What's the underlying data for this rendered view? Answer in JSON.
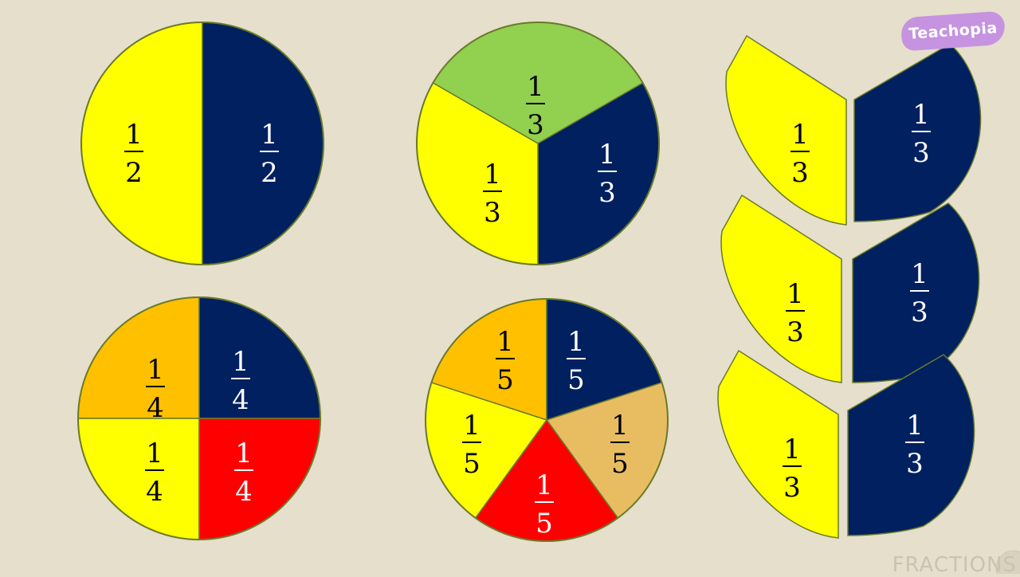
{
  "brand": {
    "name": "Teachopia",
    "color": "#c693e0"
  },
  "footer": {
    "label": "FRACTIONS"
  },
  "colors": {
    "yellow": "#ffff00",
    "navy": "#002060",
    "green": "#92d050",
    "orange": "#ffc000",
    "red": "#ff0000",
    "tan": "#e8bd62",
    "outline": "#6b7a2a"
  },
  "diagrams": [
    {
      "name": "halves-circle",
      "denominator": "2",
      "parts": [
        {
          "numerator": "1",
          "denominator": "2",
          "color": "yellow",
          "text_color": "#000000"
        },
        {
          "numerator": "1",
          "denominator": "2",
          "color": "navy",
          "text_color": "#ffffff"
        }
      ]
    },
    {
      "name": "thirds-circle",
      "denominator": "3",
      "parts": [
        {
          "numerator": "1",
          "denominator": "3",
          "color": "green",
          "text_color": "#000000"
        },
        {
          "numerator": "1",
          "denominator": "3",
          "color": "navy",
          "text_color": "#ffffff"
        },
        {
          "numerator": "1",
          "denominator": "3",
          "color": "yellow",
          "text_color": "#000000"
        }
      ]
    },
    {
      "name": "quarters-circle",
      "denominator": "4",
      "parts": [
        {
          "numerator": "1",
          "denominator": "4",
          "color": "orange",
          "text_color": "#000000"
        },
        {
          "numerator": "1",
          "denominator": "4",
          "color": "navy",
          "text_color": "#ffffff"
        },
        {
          "numerator": "1",
          "denominator": "4",
          "color": "yellow",
          "text_color": "#000000"
        },
        {
          "numerator": "1",
          "denominator": "4",
          "color": "red",
          "text_color": "#ffffff"
        }
      ]
    },
    {
      "name": "fifths-circle",
      "denominator": "5",
      "parts": [
        {
          "numerator": "1",
          "denominator": "5",
          "color": "orange",
          "text_color": "#000000"
        },
        {
          "numerator": "1",
          "denominator": "5",
          "color": "navy",
          "text_color": "#ffffff"
        },
        {
          "numerator": "1",
          "denominator": "5",
          "color": "tan",
          "text_color": "#000000"
        },
        {
          "numerator": "1",
          "denominator": "5",
          "color": "red",
          "text_color": "#ffffff"
        },
        {
          "numerator": "1",
          "denominator": "5",
          "color": "yellow",
          "text_color": "#000000"
        }
      ]
    }
  ],
  "thirds_pairs": [
    {
      "left": {
        "numerator": "1",
        "denominator": "3",
        "color": "yellow",
        "text_color": "#000000"
      },
      "right": {
        "numerator": "1",
        "denominator": "3",
        "color": "navy",
        "text_color": "#ffffff"
      }
    },
    {
      "left": {
        "numerator": "1",
        "denominator": "3",
        "color": "yellow",
        "text_color": "#000000"
      },
      "right": {
        "numerator": "1",
        "denominator": "3",
        "color": "navy",
        "text_color": "#ffffff"
      }
    },
    {
      "left": {
        "numerator": "1",
        "denominator": "3",
        "color": "yellow",
        "text_color": "#000000"
      },
      "right": {
        "numerator": "1",
        "denominator": "3",
        "color": "navy",
        "text_color": "#ffffff"
      }
    }
  ]
}
